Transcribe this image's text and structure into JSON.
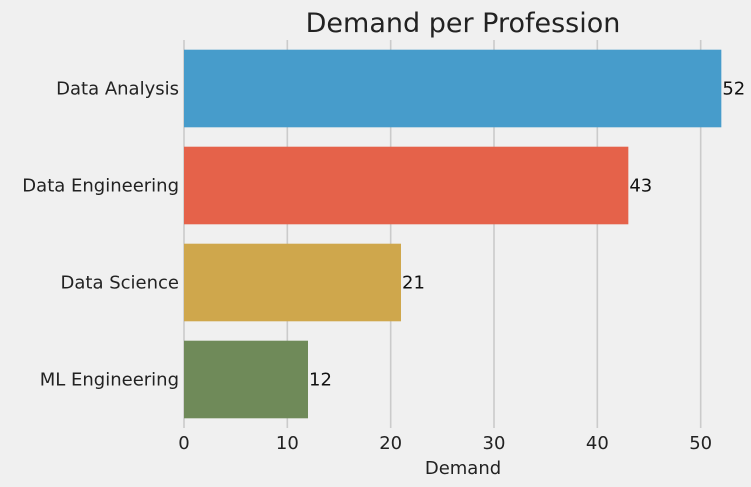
{
  "chart_data": {
    "type": "bar",
    "orientation": "horizontal",
    "title": "Demand per Profession",
    "xlabel": "Demand",
    "ylabel": "",
    "xlim": [
      0,
      54
    ],
    "x_ticks": [
      0,
      10,
      20,
      30,
      40,
      50
    ],
    "grid": "vertical",
    "categories": [
      "Data Analysis",
      "Data Engineering",
      "Data Science",
      "ML Engineering"
    ],
    "values": [
      52,
      43,
      21,
      12
    ],
    "colors": [
      "#479ccb",
      "#e5624a",
      "#cfa74c",
      "#6f8a59"
    ],
    "data_labels": [
      "52",
      "43",
      "21",
      "12"
    ]
  },
  "background_color": "#f0f0f0",
  "grid_color": "#cbcbcb"
}
